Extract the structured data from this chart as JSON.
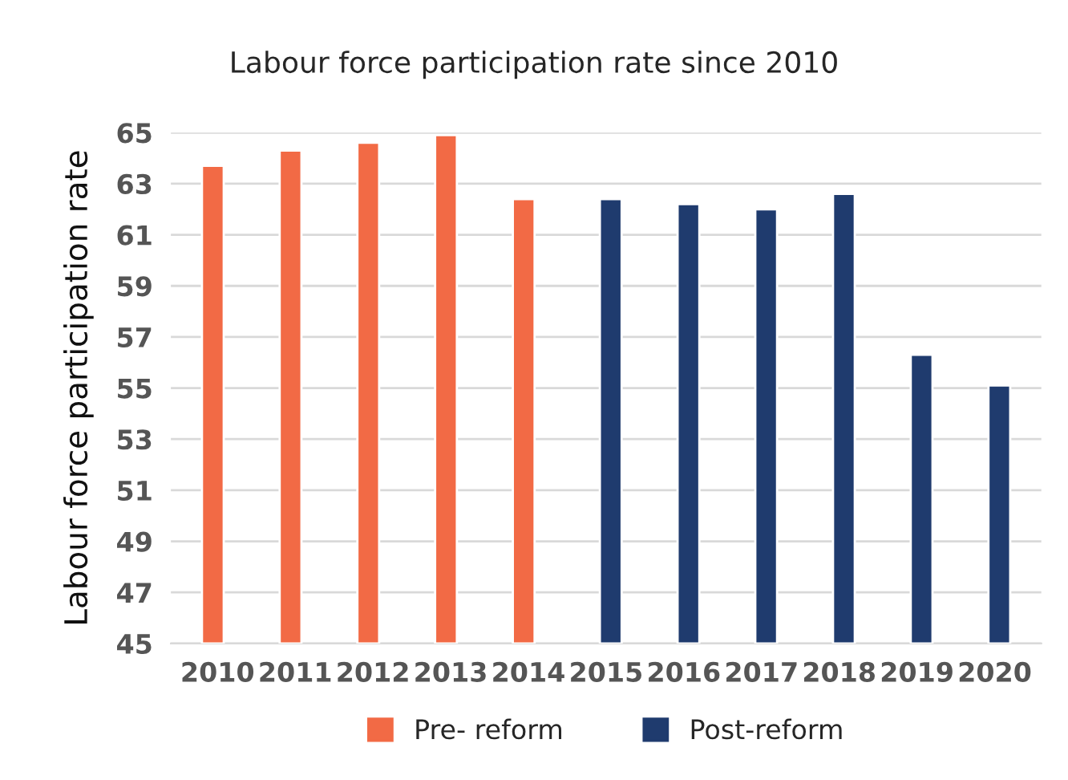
{
  "chart_data": {
    "type": "bar",
    "title": "Labour force participation rate since 2010",
    "ylabel": "Labour force participation rate",
    "categories": [
      "2010",
      "2011",
      "2012",
      "2013",
      "2014",
      "2015",
      "2016",
      "2017",
      "2018",
      "2019",
      "2020"
    ],
    "series": [
      {
        "name": "Pre- reform",
        "color": "#f26a45",
        "values": [
          63.7,
          64.3,
          64.6,
          64.9,
          62.4,
          null,
          null,
          null,
          null,
          null,
          null
        ]
      },
      {
        "name": "Post-reform",
        "color": "#1f3b6e",
        "values": [
          null,
          null,
          null,
          null,
          null,
          62.4,
          62.2,
          62.0,
          62.6,
          56.3,
          55.1
        ]
      }
    ],
    "ylim": [
      45,
      65
    ],
    "yticks": [
      45,
      47,
      49,
      51,
      53,
      55,
      57,
      59,
      61,
      63,
      65
    ],
    "grid": "y",
    "legend": "bottom"
  }
}
